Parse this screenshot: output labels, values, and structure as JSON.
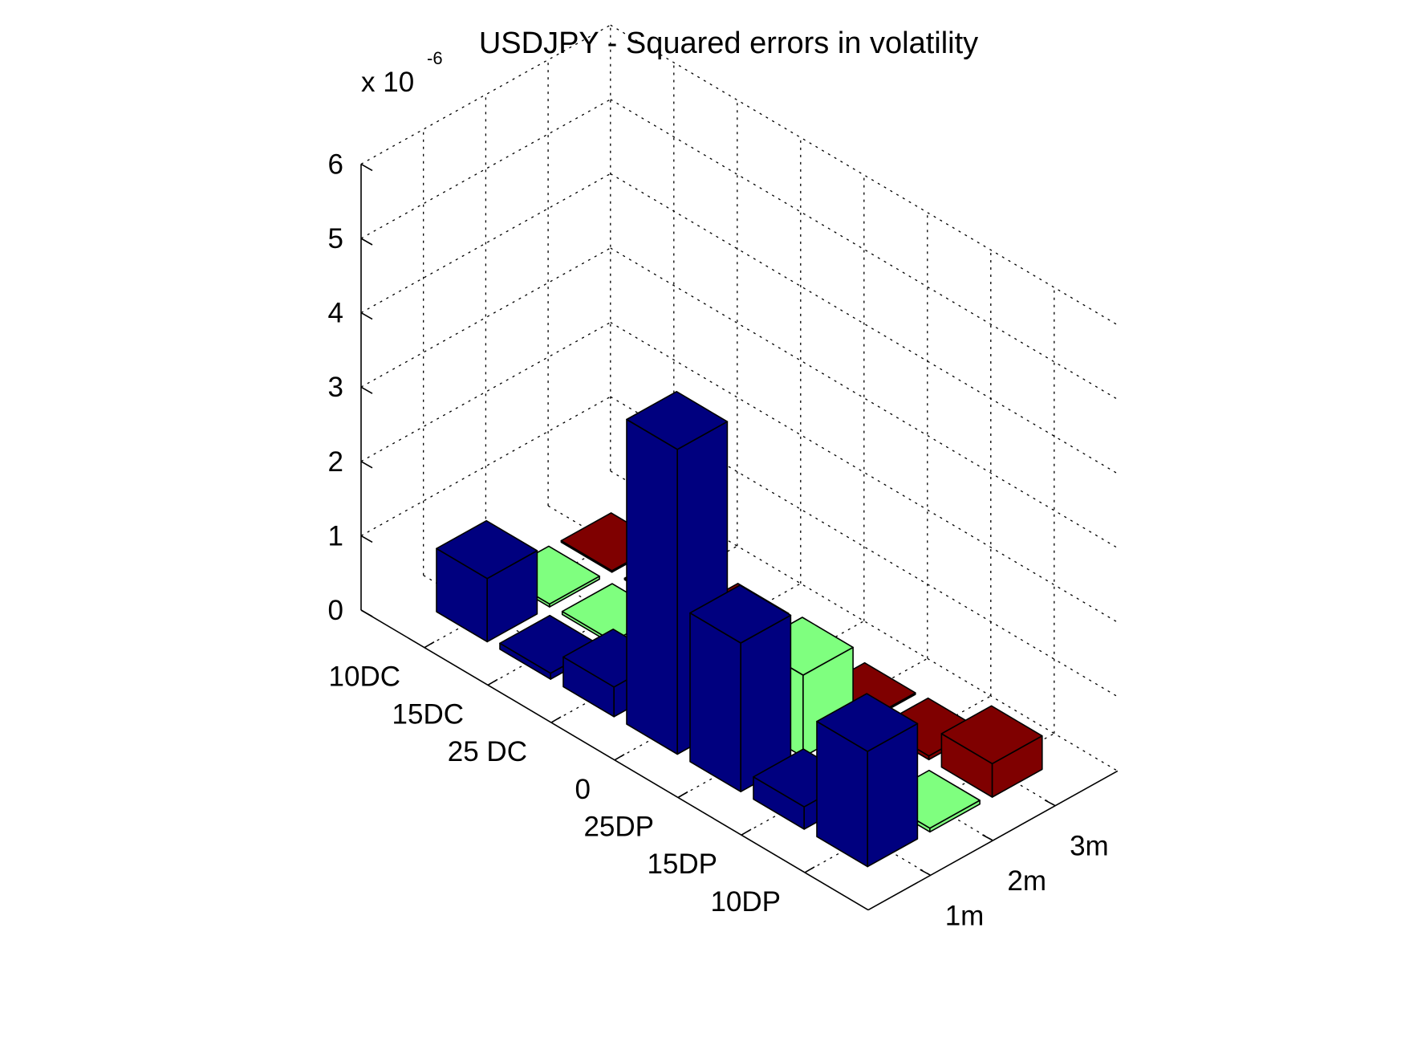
{
  "chart_data": {
    "type": "bar3d",
    "title": "USDJPY - Squared errors in volatility",
    "exponent_label": {
      "base": "x 10",
      "exponent": "-6"
    },
    "z_ticks": [
      "0",
      "1",
      "2",
      "3",
      "4",
      "5",
      "6"
    ],
    "zlim": [
      0,
      6
    ],
    "strike_labels": [
      "10DC",
      "15DC",
      "25 DC",
      "0",
      "25DP",
      "15DP",
      "10DP"
    ],
    "maturity_labels": [
      "1m",
      "2m",
      "3m"
    ],
    "grid": true,
    "series": [
      {
        "maturity": "1m",
        "color": "#00007f",
        "values": [
          0.85,
          0.08,
          0.4,
          4.1,
          2.0,
          0.3,
          1.55
        ]
      },
      {
        "maturity": "2m",
        "color": "#7fff7f",
        "values": [
          0.04,
          0.04,
          0.02,
          0.03,
          1.1,
          0.08,
          0.05
        ]
      },
      {
        "maturity": "3m",
        "color": "#7f0000",
        "values": [
          0.02,
          0.02,
          0.08,
          0.06,
          0.02,
          0.05,
          0.45
        ]
      }
    ]
  }
}
